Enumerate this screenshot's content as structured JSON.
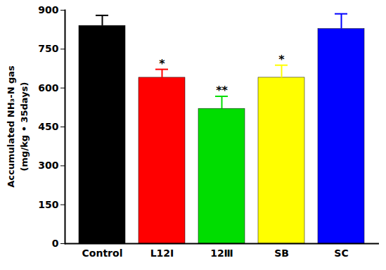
{
  "chart_data": {
    "type": "bar",
    "y_label": [
      "Accumulated NH₃-N gas",
      "(mg/kg • 35days)"
    ],
    "categories": [
      "Control",
      "L12Ⅰ",
      "12Ⅲ",
      "SB",
      "SC"
    ],
    "values": [
      840,
      640,
      520,
      640,
      828
    ],
    "errors": [
      40,
      32,
      48,
      48,
      58
    ],
    "significance": [
      null,
      "*",
      "**",
      "*",
      null
    ],
    "colors": [
      "#000000",
      "#ff0000",
      "#00dd00",
      "#ffff00",
      "#0000ff"
    ],
    "ylim": [
      0,
      900
    ],
    "yticks": [
      0,
      150,
      300,
      450,
      600,
      750,
      900
    ],
    "grid": false
  }
}
